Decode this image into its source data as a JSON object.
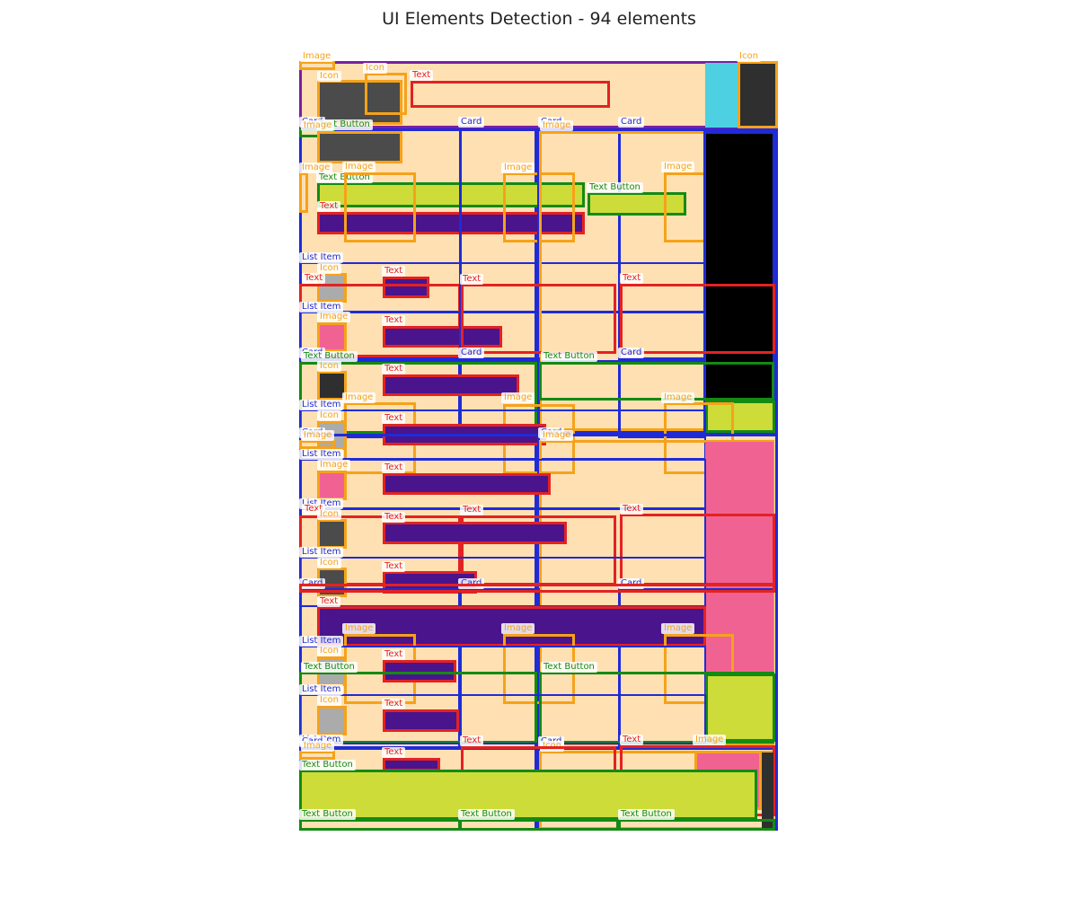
{
  "header": {
    "title": "UI Elements Detection - 94 elements"
  },
  "labels": {
    "card": "Card",
    "image": "Image",
    "icon": "Icon",
    "text": "Text",
    "text_button": "Text Button",
    "list_item": "List Item"
  },
  "colors": {
    "card": "#1f2bd8",
    "image": "#f5a21a",
    "icon": "#f5a21a",
    "text": "#e32222",
    "text_button": "#148a14",
    "list_item": "#1f2bd8",
    "canvas_bg": "#ffe0b2"
  }
}
